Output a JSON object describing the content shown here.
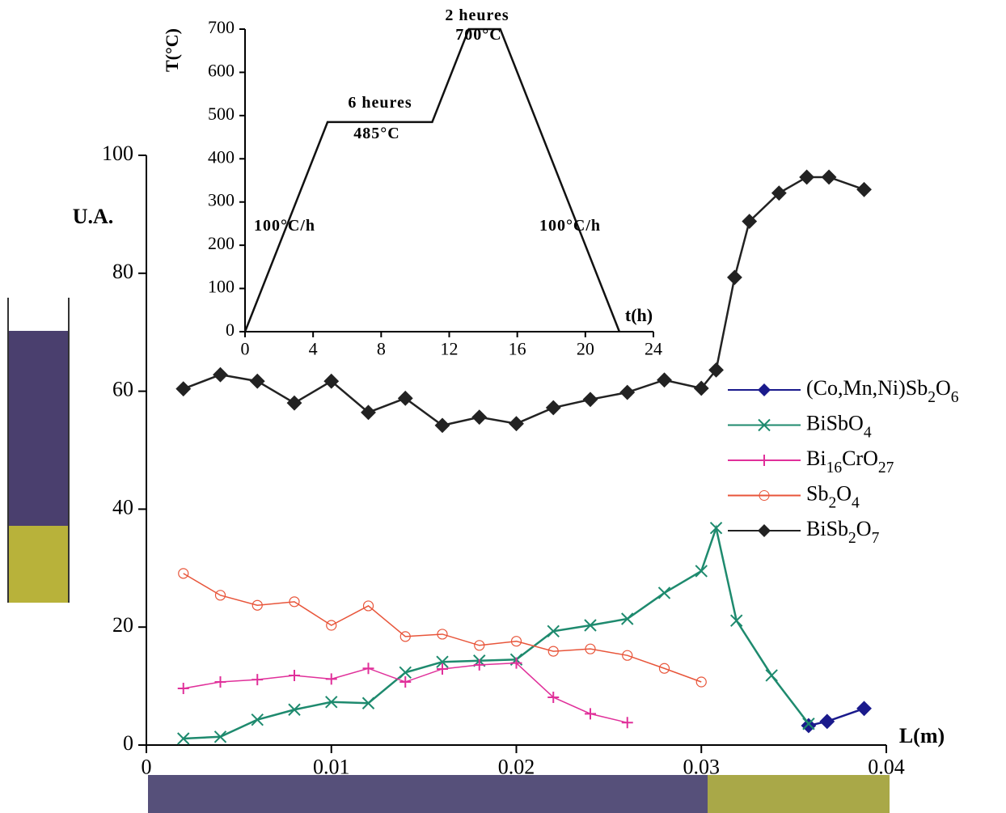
{
  "chart_data": [
    {
      "type": "line",
      "xlabel": "L(m)",
      "ylabel": "U.A.",
      "xlim": [
        0,
        0.04
      ],
      "xticks": [
        0,
        0.01,
        0.02,
        0.03,
        0.04
      ],
      "ylim": [
        0,
        100
      ],
      "yticks": [
        0,
        20,
        40,
        60,
        80,
        100
      ],
      "series": [
        {
          "name": "(Co,Mn,Ni)Sb2O6",
          "color": "#1a1a8c",
          "marker": "diamond",
          "x": [
            0.0358,
            0.0368,
            0.0388
          ],
          "values": [
            3.3,
            4.0,
            6.2
          ]
        },
        {
          "name": "BiSbO4",
          "color": "#1e8a6e",
          "marker": "x",
          "x": [
            0.002,
            0.004,
            0.006,
            0.008,
            0.01,
            0.012,
            0.014,
            0.016,
            0.018,
            0.02,
            0.022,
            0.024,
            0.026,
            0.028,
            0.03,
            0.0308,
            0.0319,
            0.0338,
            0.0358
          ],
          "values": [
            1.1,
            1.4,
            4.3,
            6.0,
            7.3,
            7.1,
            12.3,
            14.1,
            14.3,
            14.5,
            19.3,
            20.3,
            21.4,
            25.8,
            29.5,
            36.8,
            21.1,
            11.8,
            3.6
          ]
        },
        {
          "name": "Bi16CrO27",
          "color": "#e0309a",
          "marker": "plus",
          "x": [
            0.002,
            0.004,
            0.006,
            0.008,
            0.01,
            0.012,
            0.014,
            0.016,
            0.018,
            0.02,
            0.022,
            0.024,
            0.026
          ],
          "values": [
            9.6,
            10.7,
            11.1,
            11.8,
            11.2,
            13.0,
            10.7,
            12.9,
            13.6,
            13.9,
            8.1,
            5.3,
            3.8
          ]
        },
        {
          "name": "Sb2O4",
          "color": "#e8553a",
          "marker": "circle",
          "x": [
            0.002,
            0.004,
            0.006,
            0.008,
            0.01,
            0.012,
            0.014,
            0.016,
            0.018,
            0.02,
            0.022,
            0.024,
            0.026,
            0.028,
            0.03
          ],
          "values": [
            29.1,
            25.4,
            23.7,
            24.3,
            20.3,
            23.6,
            18.4,
            18.8,
            16.9,
            17.6,
            15.9,
            16.3,
            15.2,
            13.0,
            10.7
          ]
        },
        {
          "name": "BiSb2O7",
          "color": "#222222",
          "marker": "diamond",
          "x": [
            0.002,
            0.004,
            0.006,
            0.008,
            0.01,
            0.012,
            0.014,
            0.016,
            0.018,
            0.02,
            0.022,
            0.024,
            0.026,
            0.028,
            0.03,
            0.0308,
            0.0318,
            0.0326,
            0.0342,
            0.0357,
            0.0369,
            0.0388
          ],
          "values": [
            60.4,
            62.8,
            61.7,
            58.0,
            61.7,
            56.4,
            58.8,
            54.2,
            55.6,
            54.5,
            57.2,
            58.6,
            59.8,
            61.9,
            60.5,
            63.6,
            79.3,
            88.8,
            93.6,
            96.3,
            96.3,
            94.2
          ]
        }
      ]
    },
    {
      "type": "line",
      "xlabel": "t(h)",
      "ylabel": "T(°C)",
      "xlim": [
        0,
        24
      ],
      "xticks": [
        0,
        4,
        8,
        12,
        16,
        20,
        24
      ],
      "ylim": [
        0,
        700
      ],
      "yticks": [
        0,
        100,
        200,
        300,
        400,
        500,
        600,
        700
      ],
      "series": [
        {
          "color": "#111111",
          "x": [
            0,
            4.85,
            11,
            13.15,
            15,
            22
          ],
          "values": [
            0,
            485,
            485,
            700,
            700,
            0
          ]
        }
      ],
      "annotations": [
        "2   heures",
        "700°C",
        "6   heures",
        "485°C",
        "100°C/h",
        "100°C/h"
      ]
    }
  ]
}
